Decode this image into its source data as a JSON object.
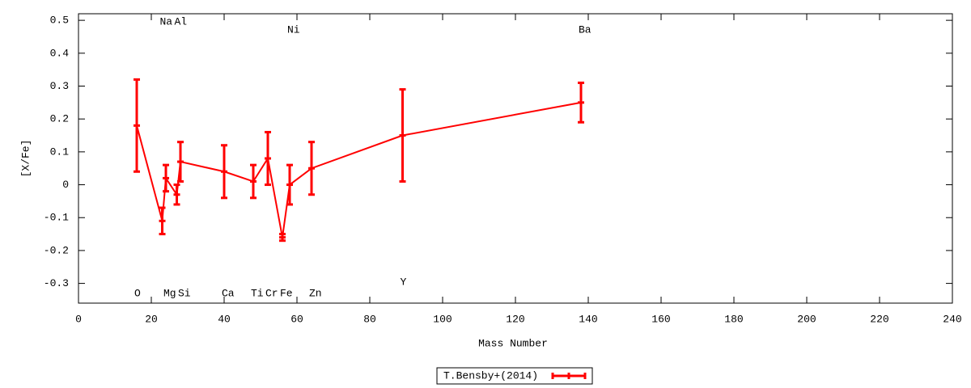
{
  "chart_data": {
    "type": "line",
    "xlabel": "Mass Number",
    "ylabel": "[X/Fe]",
    "x": [
      16,
      23,
      24,
      27,
      28,
      40,
      48,
      52,
      56,
      58,
      64,
      89,
      138
    ],
    "point_labels": [
      "O",
      "Na",
      "Mg",
      "Al",
      "Si",
      "Ca",
      "Ti",
      "Cr",
      "Fe",
      "Ni",
      "Zn",
      "Y",
      "Ba"
    ],
    "series": [
      {
        "name": "T.Bensby+(2014)",
        "color": "#ff0000",
        "values": [
          0.18,
          -0.11,
          0.02,
          -0.03,
          0.07,
          0.04,
          0.01,
          0.08,
          -0.16,
          0.0,
          0.05,
          0.15,
          0.25
        ],
        "errors": [
          0.14,
          0.04,
          0.04,
          0.03,
          0.06,
          0.08,
          0.05,
          0.08,
          0.01,
          0.06,
          0.08,
          0.14,
          0.06
        ]
      }
    ],
    "xlim": [
      0,
      240
    ],
    "xticks": [
      0,
      20,
      40,
      60,
      80,
      100,
      120,
      140,
      160,
      180,
      200,
      220,
      240
    ],
    "ylim": [
      -0.36,
      0.52
    ],
    "yticks": [
      -0.3,
      -0.2,
      -0.1,
      0,
      0.1,
      0.2,
      0.3,
      0.4,
      0.5
    ],
    "legend": "bottom"
  }
}
